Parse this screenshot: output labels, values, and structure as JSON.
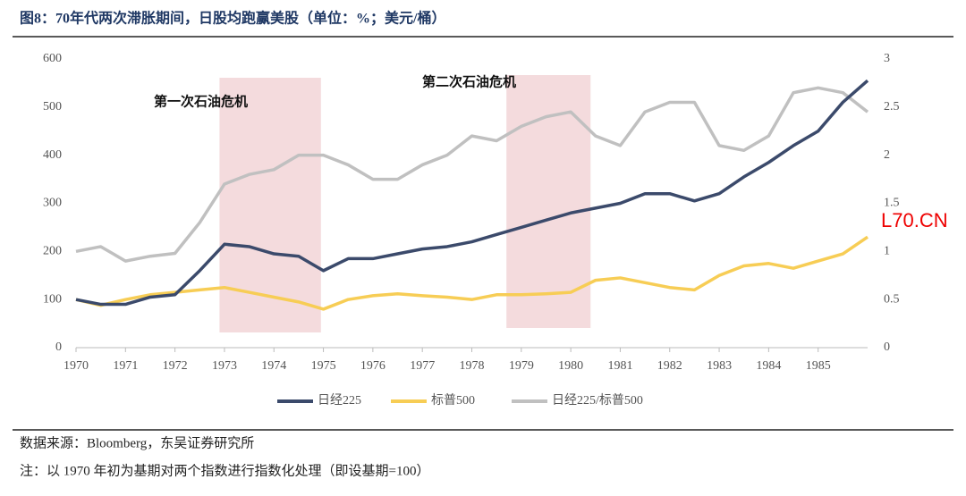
{
  "chart_data": {
    "type": "line",
    "title": "图8：70年代两次滞胀期间，日股均跑赢美股（单位：%；美元/桶）",
    "source": "数据来源：Bloomberg，东吴证券研究所",
    "note": "注：以 1970 年初为基期对两个指数进行指数化处理（即设基期=100）",
    "watermark": "L70.CN",
    "x": [
      1970,
      1970.5,
      1971,
      1971.5,
      1972,
      1972.5,
      1973,
      1973.5,
      1974,
      1974.5,
      1975,
      1975.5,
      1976,
      1976.5,
      1977,
      1977.5,
      1978,
      1978.5,
      1979,
      1979.5,
      1980,
      1980.5,
      1981,
      1981.5,
      1982,
      1982.5,
      1983,
      1983.5,
      1984,
      1984.5,
      1985,
      1985.5,
      1986
    ],
    "series": [
      {
        "name": "日经225/标普500",
        "color": "#c0c0c0",
        "axis": "y2",
        "values": [
          1.0,
          1.05,
          0.9,
          0.95,
          0.98,
          1.3,
          1.7,
          1.8,
          1.85,
          2.0,
          2.0,
          1.9,
          1.75,
          1.75,
          1.9,
          2.0,
          2.2,
          2.15,
          2.3,
          2.4,
          2.45,
          2.2,
          2.1,
          2.45,
          2.55,
          2.55,
          2.1,
          2.05,
          2.2,
          2.65,
          2.7,
          2.65,
          2.45
        ]
      },
      {
        "name": "标普500",
        "color": "#f7cd55",
        "values": [
          100,
          88,
          100,
          110,
          115,
          120,
          125,
          115,
          105,
          95,
          80,
          100,
          108,
          112,
          108,
          105,
          100,
          110,
          110,
          112,
          115,
          140,
          145,
          135,
          125,
          120,
          150,
          170,
          175,
          165,
          180,
          195,
          230
        ]
      },
      {
        "name": "日经225",
        "color": "#3b4a6b",
        "values": [
          100,
          90,
          90,
          105,
          110,
          160,
          215,
          210,
          195,
          190,
          160,
          185,
          185,
          195,
          205,
          210,
          220,
          235,
          250,
          265,
          280,
          290,
          300,
          320,
          320,
          305,
          320,
          355,
          385,
          420,
          450,
          510,
          555
        ]
      }
    ],
    "shaded": [
      {
        "label": "第一次石油危机",
        "x": [
          1972.9,
          1974.95
        ]
      },
      {
        "label": "第二次石油危机",
        "x": [
          1978.7,
          1980.4
        ]
      }
    ],
    "xlim": [
      1970,
      1986
    ],
    "xticks": [
      1970,
      1971,
      1972,
      1973,
      1974,
      1975,
      1976,
      1977,
      1978,
      1979,
      1980,
      1981,
      1982,
      1983,
      1984,
      1985
    ],
    "ylim": [
      0,
      600
    ],
    "yticks": [
      0,
      100,
      200,
      300,
      400,
      500,
      600
    ],
    "y2lim": [
      0,
      3
    ],
    "y2ticks": [
      0,
      0.5,
      1,
      1.5,
      2,
      2.5,
      3
    ],
    "legend": "bottom"
  }
}
